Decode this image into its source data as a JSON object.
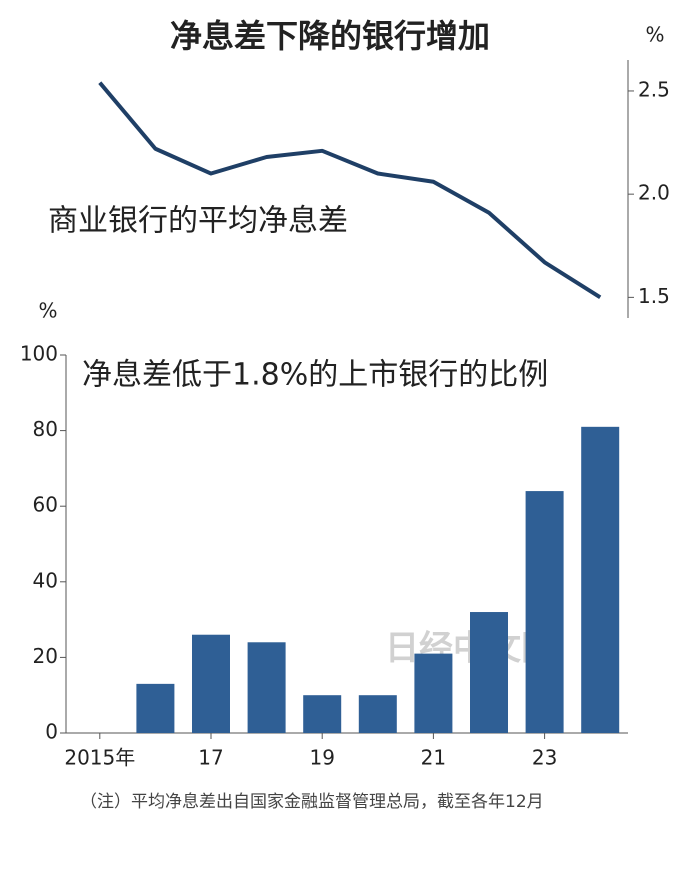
{
  "title": "净息差下降的银行增加",
  "watermark": "日经中文网",
  "note": "（注）平均净息差出自国家金融监督管理总局，截至各年12月",
  "chart_data": [
    {
      "type": "line",
      "axis_label": "%",
      "annotation": "商业银行的平均净息差",
      "series": [
        {
          "name": "商业银行的平均净息差",
          "color": "#1f3f66",
          "values": [
            2.54,
            2.22,
            2.1,
            2.18,
            2.21,
            2.1,
            2.06,
            1.91,
            1.67,
            1.5
          ]
        }
      ],
      "ylim": [
        1.4,
        2.65
      ],
      "yticks": [
        2.5,
        {
          "value": 2.0,
          "label": "2.0"
        },
        1.5
      ]
    },
    {
      "type": "bar",
      "title": "净息差低于1.8%的上市银行的比例",
      "axis_label": "%",
      "categories": [
        "2015年",
        null,
        "17",
        null,
        "19",
        null,
        "21",
        null,
        "23",
        null
      ],
      "values": [
        0,
        13,
        26,
        24,
        10,
        10,
        21,
        32,
        64,
        81
      ],
      "color": "#2f5f95",
      "ylim": [
        0,
        100
      ],
      "yticks": [
        0,
        20,
        40,
        60,
        80,
        100
      ]
    }
  ]
}
